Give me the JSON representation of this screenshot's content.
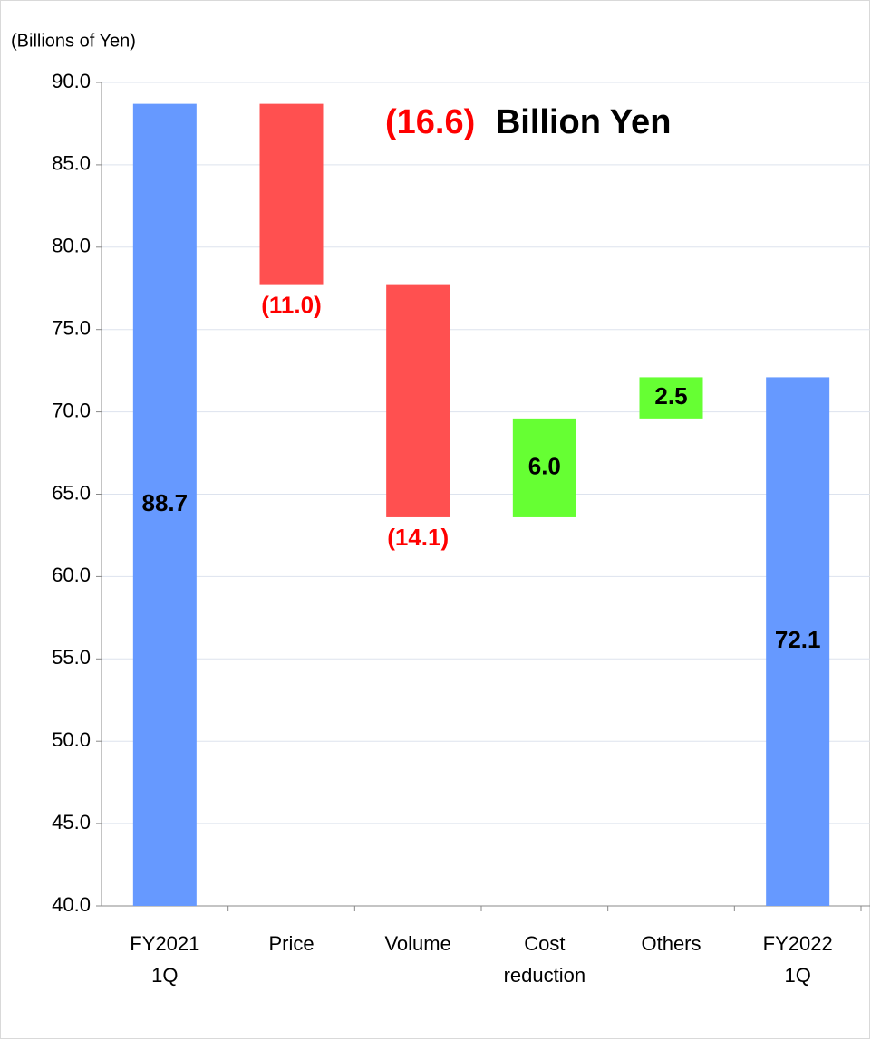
{
  "chart_data": {
    "type": "waterfall",
    "y_axis_label": "(Billions of Yen)",
    "annotation": [
      "(16.6)",
      "Billion Yen"
    ],
    "categories": [
      [
        "FY2021",
        "1Q"
      ],
      [
        "Price"
      ],
      [
        "Volume"
      ],
      [
        "Cost",
        "reduction"
      ],
      [
        "Others"
      ],
      [
        "FY2022",
        "1Q"
      ]
    ],
    "measure": [
      "total",
      "relative",
      "relative",
      "relative",
      "relative",
      "total"
    ],
    "values": [
      88.7,
      -11.0,
      -14.1,
      6.0,
      2.5,
      72.1
    ],
    "value_labels": [
      "88.7",
      "(11.0)",
      "(14.1)",
      "6.0",
      "2.5",
      "72.1"
    ],
    "colors": {
      "total": "#6699ff",
      "decrease": "#ff5050",
      "increase": "#66ff33"
    },
    "ylim": [
      40,
      90
    ],
    "yticks": [
      {
        "value": 40,
        "label": "40.0"
      },
      {
        "value": 45,
        "label": "45.0"
      },
      {
        "value": 50,
        "label": "50.0"
      },
      {
        "value": 55,
        "label": "55.0"
      },
      {
        "value": 60,
        "label": "60.0"
      },
      {
        "value": 65,
        "label": "65.0"
      },
      {
        "value": 70,
        "label": "70.0"
      },
      {
        "value": 75,
        "label": "75.0"
      },
      {
        "value": 80,
        "label": "80.0"
      },
      {
        "value": 85,
        "label": "85.0"
      },
      {
        "value": 90,
        "label": "90.0"
      }
    ],
    "grid": true
  }
}
